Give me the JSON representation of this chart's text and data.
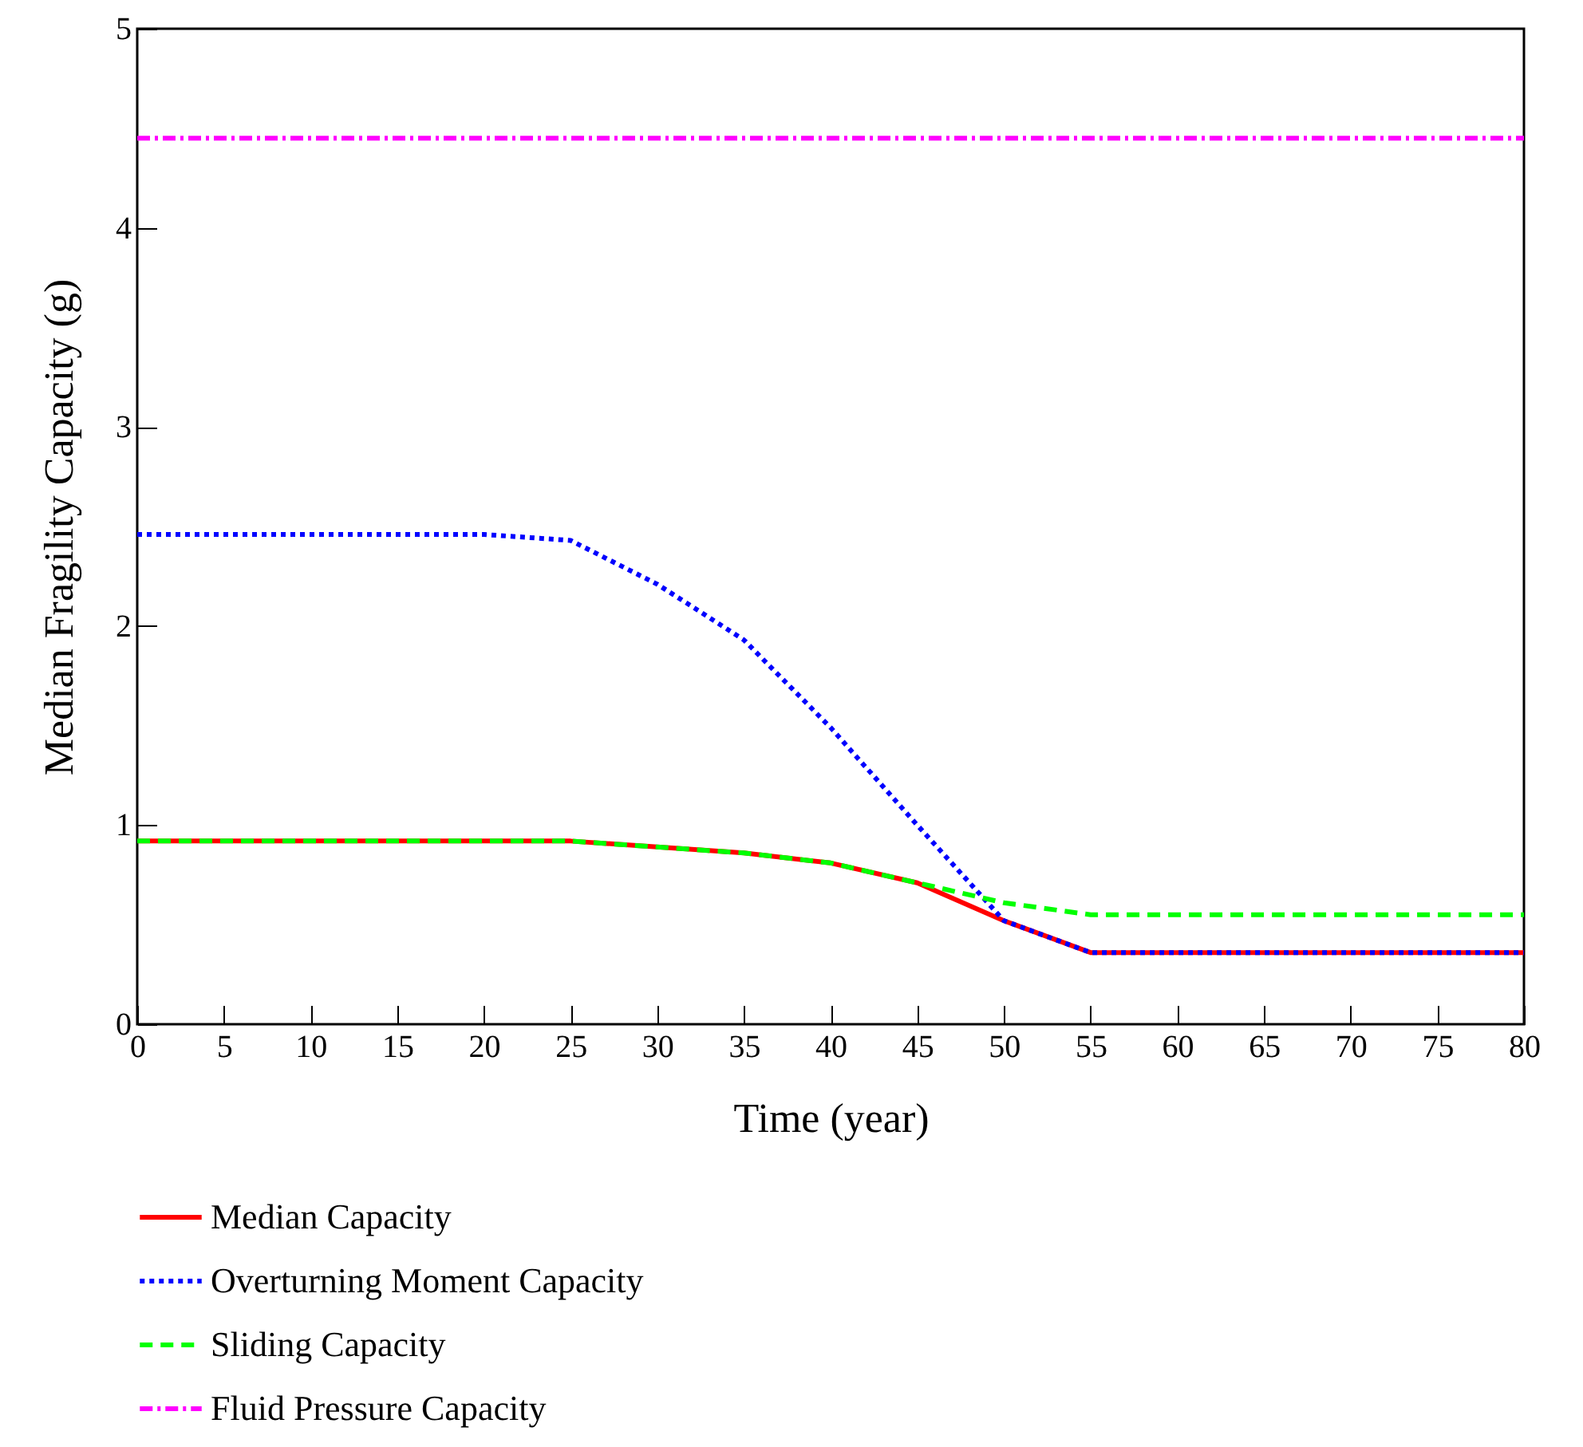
{
  "chart_data": {
    "type": "line",
    "xlabel": "Time (year)",
    "ylabel": "Median Fragility Capacity (g)",
    "x": [
      0,
      5,
      10,
      15,
      20,
      25,
      30,
      35,
      40,
      45,
      50,
      55,
      60,
      65,
      70,
      75,
      80
    ],
    "series": [
      {
        "name": "Median Capacity",
        "color": "#ff0000",
        "line_style": "solid",
        "values": [
          0.92,
          0.92,
          0.92,
          0.92,
          0.92,
          0.92,
          0.89,
          0.86,
          0.81,
          0.71,
          0.52,
          0.36,
          0.36,
          0.36,
          0.36,
          0.36,
          0.36
        ]
      },
      {
        "name": "Overturning Moment Capacity",
        "color": "#0000ff",
        "line_style": "dotted",
        "values": [
          2.46,
          2.46,
          2.46,
          2.46,
          2.46,
          2.43,
          2.21,
          1.93,
          1.49,
          1.0,
          0.52,
          0.36,
          0.36,
          0.36,
          0.36,
          0.36,
          0.36
        ]
      },
      {
        "name": "Sliding Capacity",
        "color": "#00ff00",
        "line_style": "dashed",
        "values": [
          0.92,
          0.92,
          0.92,
          0.92,
          0.92,
          0.92,
          0.89,
          0.86,
          0.81,
          0.71,
          0.61,
          0.55,
          0.55,
          0.55,
          0.55,
          0.55,
          0.55
        ]
      },
      {
        "name": "Fluid Pressure Capacity",
        "color": "#ff00ff",
        "line_style": "dashdot",
        "values": [
          4.45,
          4.45,
          4.45,
          4.45,
          4.45,
          4.45,
          4.45,
          4.45,
          4.45,
          4.45,
          4.45,
          4.45,
          4.45,
          4.45,
          4.45,
          4.45,
          4.45
        ]
      }
    ],
    "xlim": [
      0,
      80
    ],
    "xticks": [
      0,
      5,
      10,
      15,
      20,
      25,
      30,
      35,
      40,
      45,
      50,
      55,
      60,
      65,
      70,
      75,
      80
    ],
    "ylim": [
      0,
      5
    ],
    "yticks": [
      0,
      1,
      2,
      3,
      4,
      5
    ],
    "grid": false,
    "legend": "bottom",
    "marker": "none"
  }
}
